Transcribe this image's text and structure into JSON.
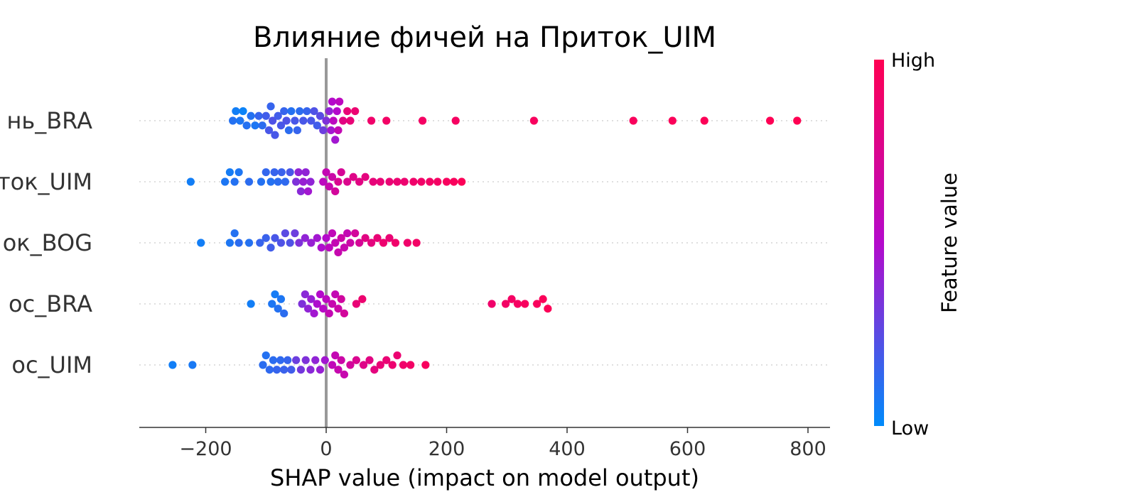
{
  "chart_data": {
    "type": "scatter",
    "subtype": "shap-beeswarm",
    "title": "Влияние фичей на Приток_UIM",
    "xlabel": "SHAP value (impact on model output)",
    "xlim": [
      -310,
      835
    ],
    "xticks": [
      -200,
      0,
      200,
      400,
      600,
      800
    ],
    "xtick_labels": [
      "−200",
      "0",
      "200",
      "400",
      "600",
      "800"
    ],
    "features": [
      "нь_BRA",
      "ток_UIM",
      "ок_BOG",
      "ос_BRA",
      "ос_UIM"
    ],
    "colorbar": {
      "title": "Feature value",
      "high_label": "High",
      "low_label": "Low",
      "low_color": "#008bfb",
      "mid_color": "#b40acb",
      "high_color": "#ff0052"
    },
    "zero_line_color": "#999999",
    "series": [
      {
        "feature": "нь_BRA",
        "points": [
          [
            -155,
            0.1
          ],
          [
            -150,
            0.05
          ],
          [
            -143,
            0.08
          ],
          [
            -138,
            0.03
          ],
          [
            -132,
            0.1
          ],
          [
            -125,
            0.1
          ],
          [
            -118,
            0.08
          ],
          [
            -112,
            0.15
          ],
          [
            -106,
            0.12
          ],
          [
            -100,
            0.18
          ],
          [
            -95,
            0.2
          ],
          [
            -92,
            0.15
          ],
          [
            -89,
            0.22
          ],
          [
            -85,
            0.2
          ],
          [
            -80,
            0.18
          ],
          [
            -75,
            0.2
          ],
          [
            -70,
            0.15
          ],
          [
            -66,
            0.22
          ],
          [
            -62,
            0.12
          ],
          [
            -58,
            0.1
          ],
          [
            -52,
            0.2
          ],
          [
            -48,
            0.15
          ],
          [
            -44,
            0.12
          ],
          [
            -38,
            0.2
          ],
          [
            -32,
            0.15
          ],
          [
            -25,
            0.2
          ],
          [
            -20,
            0.22
          ],
          [
            -15,
            0.18
          ],
          [
            -10,
            0.25
          ],
          [
            -5,
            0.3
          ],
          [
            0,
            0.35
          ],
          [
            5,
            0.4
          ],
          [
            8,
            0.45
          ],
          [
            10,
            0.5
          ],
          [
            12,
            0.55
          ],
          [
            15,
            0.45
          ],
          [
            18,
            0.5
          ],
          [
            20,
            0.6
          ],
          [
            22,
            0.55
          ],
          [
            28,
            0.8
          ],
          [
            35,
            0.85
          ],
          [
            40,
            0.85
          ],
          [
            48,
            0.87
          ],
          [
            75,
            0.9
          ],
          [
            100,
            0.92
          ],
          [
            160,
            0.93
          ],
          [
            215,
            0.94
          ],
          [
            345,
            0.95
          ],
          [
            510,
            0.96
          ],
          [
            575,
            0.97
          ],
          [
            628,
            0.98
          ],
          [
            737,
            0.99
          ],
          [
            782,
            1.0
          ]
        ]
      },
      {
        "feature": "ток_UIM",
        "points": [
          [
            -225,
            0.05
          ],
          [
            -168,
            0.08
          ],
          [
            -160,
            0.06
          ],
          [
            -152,
            0.1
          ],
          [
            -145,
            0.08
          ],
          [
            -128,
            0.12
          ],
          [
            -108,
            0.1
          ],
          [
            -100,
            0.14
          ],
          [
            -92,
            0.1
          ],
          [
            -86,
            0.15
          ],
          [
            -80,
            0.12
          ],
          [
            -74,
            0.16
          ],
          [
            -68,
            0.13
          ],
          [
            -60,
            0.2
          ],
          [
            -50,
            0.35
          ],
          [
            -46,
            0.4
          ],
          [
            -42,
            0.38
          ],
          [
            -38,
            0.42
          ],
          [
            -34,
            0.4
          ],
          [
            -30,
            0.45
          ],
          [
            -26,
            0.4
          ],
          [
            -5,
            0.55
          ],
          [
            0,
            0.6
          ],
          [
            5,
            0.62
          ],
          [
            10,
            0.65
          ],
          [
            15,
            0.7
          ],
          [
            20,
            0.75
          ],
          [
            25,
            0.72
          ],
          [
            35,
            0.76
          ],
          [
            45,
            0.78
          ],
          [
            55,
            0.8
          ],
          [
            65,
            0.82
          ],
          [
            78,
            0.84
          ],
          [
            90,
            0.85
          ],
          [
            105,
            0.86
          ],
          [
            118,
            0.87
          ],
          [
            130,
            0.88
          ],
          [
            145,
            0.9
          ],
          [
            158,
            0.91
          ],
          [
            172,
            0.92
          ],
          [
            185,
            0.93
          ],
          [
            200,
            0.95
          ],
          [
            212,
            0.96
          ],
          [
            225,
            0.98
          ]
        ]
      },
      {
        "feature": "ок_BOG",
        "points": [
          [
            -208,
            0.05
          ],
          [
            -160,
            0.08
          ],
          [
            -152,
            0.1
          ],
          [
            -145,
            0.12
          ],
          [
            -128,
            0.1
          ],
          [
            -110,
            0.15
          ],
          [
            -100,
            0.16
          ],
          [
            -92,
            0.18
          ],
          [
            -85,
            0.2
          ],
          [
            -75,
            0.22
          ],
          [
            -68,
            0.25
          ],
          [
            -60,
            0.22
          ],
          [
            -52,
            0.3
          ],
          [
            -45,
            0.35
          ],
          [
            -35,
            0.4
          ],
          [
            -25,
            0.42
          ],
          [
            -15,
            0.45
          ],
          [
            -8,
            0.48
          ],
          [
            0,
            0.5
          ],
          [
            5,
            0.55
          ],
          [
            10,
            0.58
          ],
          [
            15,
            0.6
          ],
          [
            20,
            0.62
          ],
          [
            25,
            0.65
          ],
          [
            30,
            0.62
          ],
          [
            35,
            0.6
          ],
          [
            40,
            0.65
          ],
          [
            48,
            0.7
          ],
          [
            55,
            0.72
          ],
          [
            65,
            0.8
          ],
          [
            75,
            0.82
          ],
          [
            85,
            0.85
          ],
          [
            95,
            0.88
          ],
          [
            105,
            0.86
          ],
          [
            115,
            0.9
          ],
          [
            135,
            0.9
          ],
          [
            150,
            0.92
          ]
        ]
      },
      {
        "feature": "ос_BRA",
        "points": [
          [
            -125,
            0.05
          ],
          [
            -90,
            0.08
          ],
          [
            -85,
            0.06
          ],
          [
            -80,
            0.1
          ],
          [
            -75,
            0.08
          ],
          [
            -70,
            0.12
          ],
          [
            -40,
            0.35
          ],
          [
            -35,
            0.38
          ],
          [
            -30,
            0.4
          ],
          [
            -25,
            0.42
          ],
          [
            -20,
            0.45
          ],
          [
            -15,
            0.48
          ],
          [
            -10,
            0.5
          ],
          [
            -5,
            0.52
          ],
          [
            0,
            0.55
          ],
          [
            5,
            0.6
          ],
          [
            10,
            0.62
          ],
          [
            15,
            0.6
          ],
          [
            20,
            0.65
          ],
          [
            25,
            0.68
          ],
          [
            30,
            0.7
          ],
          [
            50,
            0.85
          ],
          [
            60,
            0.88
          ],
          [
            275,
            0.9
          ],
          [
            298,
            0.92
          ],
          [
            308,
            0.93
          ],
          [
            318,
            0.94
          ],
          [
            330,
            0.95
          ],
          [
            350,
            0.96
          ],
          [
            360,
            0.97
          ],
          [
            368,
            0.98
          ]
        ]
      },
      {
        "feature": "ос_UIM",
        "points": [
          [
            -255,
            0.05
          ],
          [
            -222,
            0.07
          ],
          [
            -105,
            0.12
          ],
          [
            -100,
            0.1
          ],
          [
            -94,
            0.13
          ],
          [
            -88,
            0.12
          ],
          [
            -82,
            0.15
          ],
          [
            -76,
            0.13
          ],
          [
            -70,
            0.16
          ],
          [
            -64,
            0.15
          ],
          [
            -58,
            0.18
          ],
          [
            -50,
            0.3
          ],
          [
            -42,
            0.32
          ],
          [
            -34,
            0.35
          ],
          [
            -26,
            0.38
          ],
          [
            -18,
            0.4
          ],
          [
            -10,
            0.42
          ],
          [
            -2,
            0.45
          ],
          [
            10,
            0.58
          ],
          [
            15,
            0.6
          ],
          [
            20,
            0.62
          ],
          [
            25,
            0.65
          ],
          [
            30,
            0.62
          ],
          [
            40,
            0.7
          ],
          [
            50,
            0.75
          ],
          [
            62,
            0.78
          ],
          [
            72,
            0.8
          ],
          [
            80,
            0.82
          ],
          [
            90,
            0.85
          ],
          [
            100,
            0.86
          ],
          [
            110,
            0.88
          ],
          [
            118,
            0.87
          ],
          [
            128,
            0.9
          ],
          [
            140,
            0.92
          ],
          [
            165,
            0.95
          ]
        ]
      }
    ]
  }
}
